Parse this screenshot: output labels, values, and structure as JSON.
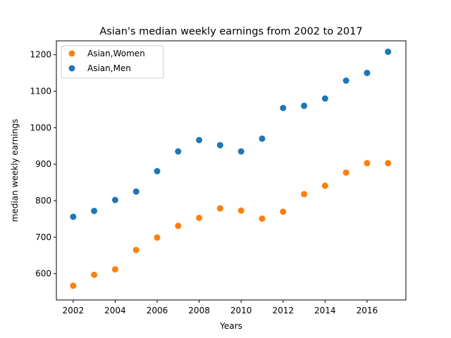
{
  "chart_data": {
    "type": "scatter",
    "title": "Asian's median weekly earnings from 2002 to 2017",
    "xlabel": "Years",
    "ylabel": "median weekly earnings",
    "xlim": [
      2001.2,
      2017.85
    ],
    "ylim": [
      528,
      1238
    ],
    "xticks": [
      2002,
      2004,
      2006,
      2008,
      2010,
      2012,
      2014,
      2016
    ],
    "yticks": [
      600,
      700,
      800,
      900,
      1000,
      1100,
      1200
    ],
    "grid": false,
    "legend_position": "top-left",
    "x": [
      2002,
      2003,
      2004,
      2005,
      2006,
      2007,
      2008,
      2009,
      2010,
      2011,
      2012,
      2013,
      2014,
      2015,
      2016,
      2017
    ],
    "series": [
      {
        "name": "Asian,Women",
        "color": "#ff7f0e",
        "values": [
          567,
          597,
          612,
          665,
          699,
          731,
          753,
          779,
          773,
          751,
          770,
          818,
          841,
          877,
          903,
          903
        ]
      },
      {
        "name": "Asian,Men",
        "color": "#1f77b4",
        "values": [
          756,
          772,
          802,
          825,
          881,
          935,
          966,
          952,
          935,
          970,
          1054,
          1060,
          1080,
          1129,
          1150,
          1208
        ]
      }
    ]
  }
}
